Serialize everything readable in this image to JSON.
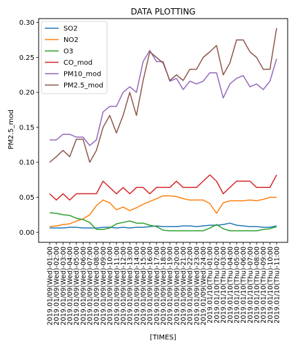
{
  "chart_data": {
    "type": "line",
    "title": "DATA PLOTTING",
    "xlabel": "[TIMES]",
    "ylabel": "PM2.5_mod",
    "ylim": [
      -0.0145,
      0.3055
    ],
    "yticks": [
      0.0,
      0.05,
      0.1,
      0.15,
      0.2,
      0.25,
      0.3
    ],
    "ytick_labels": [
      "0.00",
      "0.05",
      "0.10",
      "0.15",
      "0.20",
      "0.25",
      "0.30"
    ],
    "grid": false,
    "legend_position": "top-left",
    "categories": [
      "2019.01/09(Wed)-01:00",
      "2019.01/09(Wed)-02:00",
      "2019.01/09(Wed)-03:00",
      "2019.01/09(Wed)-04:00",
      "2019.01/09(Wed)-05:00",
      "2019.01/09(Wed)-06:00",
      "2019.01/09(Wed)-07:00",
      "2019.01/09(Wed)-08:00",
      "2019.01/09(Wed)-09:00",
      "2019.01/09(Wed)-10:00",
      "2019.01/09(Wed)-11:00",
      "2019.01/09(Wed)-12:00",
      "2019.01/09(Wed)-13:00",
      "2019.01/09(Wed)-14:00",
      "2019.01/09(Wed)-15:00",
      "2019.01/09(Wed)-16:00",
      "2019.01/09(Wed)-17:00",
      "2019.01/09(Wed)-18:00",
      "2019.01/09(Wed)-19:00",
      "2019.01/09(Wed)-20:00",
      "2019.01/09(Wed)-21:00",
      "2019.01/09(Wed)-22:00",
      "2019.01/09(Wed)-23:00",
      "2019.01/09(Wed)-24:00",
      "2019.01/10(Thu)-01:00",
      "2019.01/10(Thu)-02:00",
      "2019.01/10(Thu)-03:00",
      "2019.01/10(Thu)-04:00",
      "2019.01/10(Thu)-05:00",
      "2019.01/10(Thu)-06:00",
      "2019.01/10(Thu)-07:00",
      "2019.01/10(Thu)-08:00",
      "2019.01/10(Thu)-09:00",
      "2019.01/10(Thu)-10:00",
      "2019.01/10(Thu)-11:00"
    ],
    "series": [
      {
        "name": "SO2",
        "color": "#1f77b4",
        "values": [
          0.006,
          0.006,
          0.006,
          0.007,
          0.007,
          0.006,
          0.006,
          0.006,
          0.007,
          0.007,
          0.006,
          0.007,
          0.006,
          0.007,
          0.007,
          0.008,
          0.009,
          0.008,
          0.008,
          0.008,
          0.009,
          0.009,
          0.008,
          0.009,
          0.01,
          0.01,
          0.011,
          0.013,
          0.01,
          0.009,
          0.008,
          0.008,
          0.007,
          0.007,
          0.009
        ]
      },
      {
        "name": "NO2",
        "color": "#ff7f0e",
        "values": [
          0.008,
          0.009,
          0.011,
          0.012,
          0.016,
          0.019,
          0.025,
          0.038,
          0.046,
          0.042,
          0.032,
          0.036,
          0.031,
          0.035,
          0.04,
          0.044,
          0.048,
          0.052,
          0.052,
          0.051,
          0.048,
          0.046,
          0.046,
          0.046,
          0.041,
          0.027,
          0.042,
          0.045,
          0.045,
          0.045,
          0.046,
          0.045,
          0.047,
          0.05,
          0.05
        ]
      },
      {
        "name": "O3",
        "color": "#2ca02c",
        "values": [
          0.028,
          0.027,
          0.025,
          0.024,
          0.02,
          0.018,
          0.014,
          0.004,
          0.004,
          0.006,
          0.012,
          0.014,
          0.016,
          0.013,
          0.013,
          0.01,
          0.008,
          0.003,
          0.002,
          0.002,
          0.002,
          0.002,
          0.002,
          0.002,
          0.006,
          0.011,
          0.005,
          0.002,
          0.002,
          0.002,
          0.002,
          0.002,
          0.004,
          0.005,
          0.008
        ]
      },
      {
        "name": "CO_mod",
        "color": "#d62728",
        "values": [
          0.055,
          0.046,
          0.055,
          0.046,
          0.055,
          0.055,
          0.055,
          0.055,
          0.073,
          0.064,
          0.055,
          0.064,
          0.055,
          0.064,
          0.064,
          0.055,
          0.064,
          0.064,
          0.064,
          0.073,
          0.064,
          0.064,
          0.064,
          0.073,
          0.082,
          0.073,
          0.055,
          0.064,
          0.073,
          0.073,
          0.073,
          0.064,
          0.064,
          0.064,
          0.082
        ]
      },
      {
        "name": "PM10_mod",
        "color": "#9467bd",
        "values": [
          0.132,
          0.132,
          0.14,
          0.14,
          0.136,
          0.136,
          0.124,
          0.132,
          0.172,
          0.18,
          0.18,
          0.2,
          0.208,
          0.2,
          0.244,
          0.26,
          0.244,
          0.244,
          0.216,
          0.22,
          0.204,
          0.216,
          0.212,
          0.216,
          0.228,
          0.228,
          0.192,
          0.212,
          0.22,
          0.224,
          0.208,
          0.212,
          0.204,
          0.216,
          0.248
        ]
      },
      {
        "name": "PM2.5_mod",
        "color": "#8c564b",
        "values": [
          0.1,
          0.108,
          0.117,
          0.108,
          0.133,
          0.133,
          0.1,
          0.117,
          0.15,
          0.167,
          0.142,
          0.167,
          0.2,
          0.167,
          0.217,
          0.258,
          0.25,
          0.242,
          0.217,
          0.225,
          0.217,
          0.233,
          0.233,
          0.25,
          0.258,
          0.267,
          0.225,
          0.242,
          0.275,
          0.275,
          0.258,
          0.25,
          0.233,
          0.233,
          0.292
        ]
      }
    ]
  }
}
